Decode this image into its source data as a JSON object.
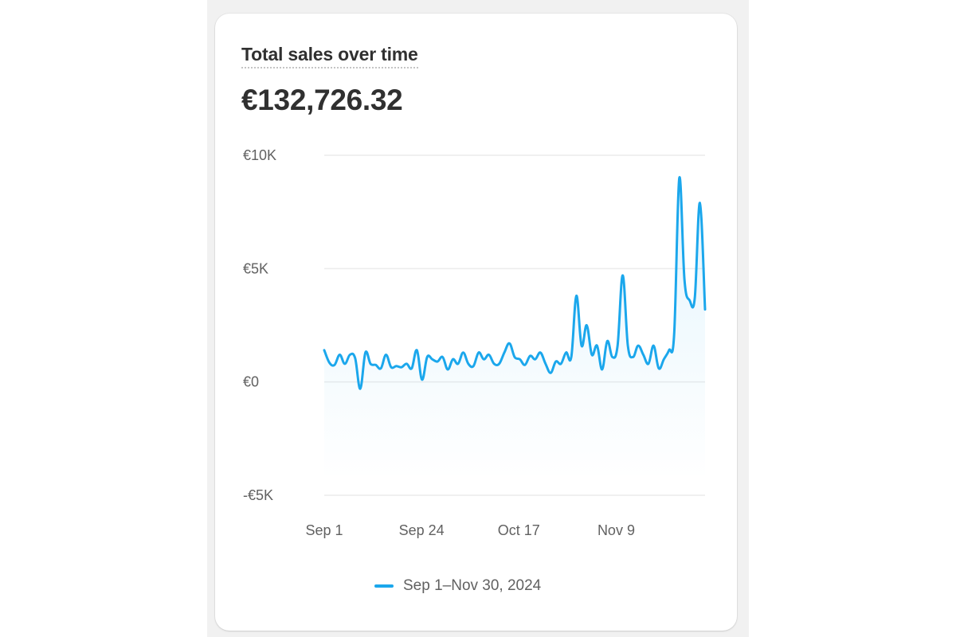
{
  "card": {
    "title": "Total sales over time",
    "total": "€132,726.32"
  },
  "colors": {
    "series": "#1ba7ec",
    "grid": "#ececec",
    "card_background": "#ffffff",
    "page_background": "#f1f1f1"
  },
  "legend": {
    "label": "Sep 1–Nov 30, 2024"
  },
  "chart_data": {
    "type": "area",
    "title": "Total sales over time",
    "xlabel": "",
    "ylabel": "",
    "ylim": [
      -5000,
      10000
    ],
    "y_ticks": [
      {
        "value": 10000,
        "label": "€10K"
      },
      {
        "value": 5000,
        "label": "€5K"
      },
      {
        "value": 0,
        "label": "€0"
      },
      {
        "value": -5000,
        "label": "-€5K"
      }
    ],
    "x_ticks": [
      "Sep 1",
      "Sep 24",
      "Oct 17",
      "Nov 9"
    ],
    "grid": true,
    "legend_position": "bottom",
    "x_start": "2024-09-01",
    "series": [
      {
        "name": "Sep 1–Nov 30, 2024",
        "values": [
          1400,
          850,
          750,
          1200,
          800,
          1200,
          1050,
          -300,
          1300,
          800,
          750,
          600,
          1200,
          650,
          700,
          650,
          800,
          600,
          1400,
          100,
          1100,
          1000,
          900,
          1100,
          550,
          1000,
          800,
          1300,
          800,
          700,
          1300,
          1000,
          1200,
          800,
          800,
          1300,
          1700,
          1100,
          1000,
          750,
          1150,
          1000,
          1300,
          800,
          400,
          900,
          800,
          1300,
          1100,
          3800,
          1600,
          2500,
          1200,
          1600,
          550,
          1800,
          1100,
          1600,
          4700,
          1600,
          1100,
          1600,
          1200,
          800,
          1600,
          600,
          1000,
          1400,
          2100,
          9000,
          4500,
          3600,
          3700,
          7900,
          3200
        ]
      }
    ]
  }
}
